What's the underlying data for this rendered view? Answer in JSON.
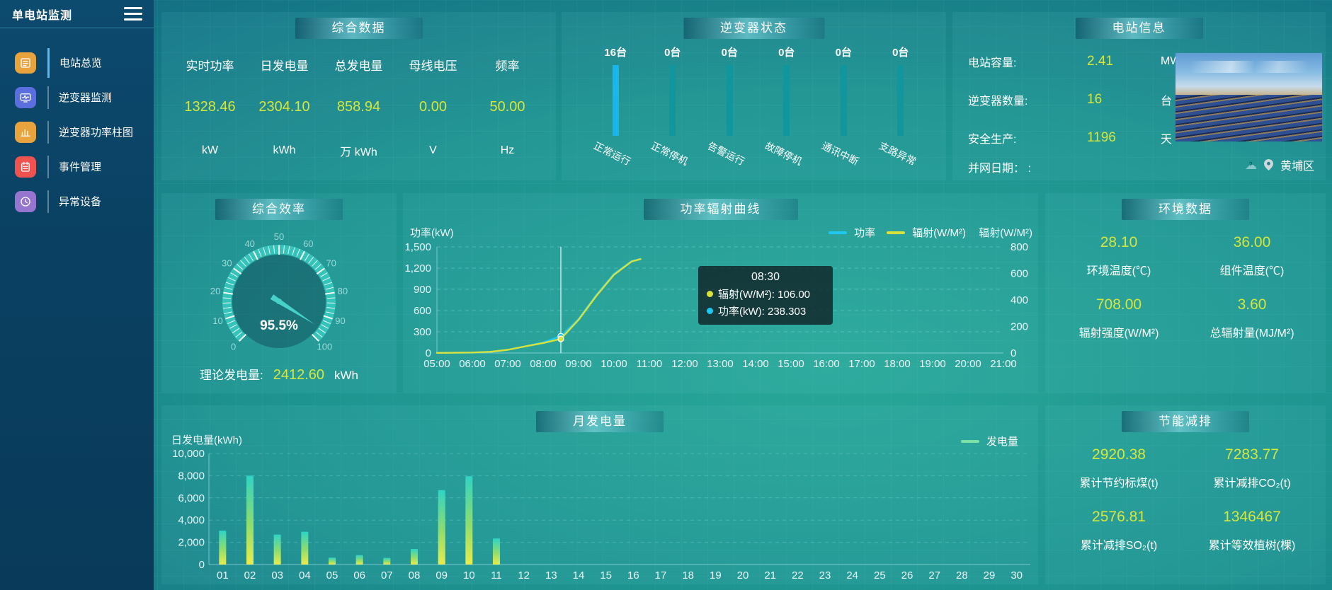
{
  "app": {
    "title": "单电站监测",
    "icons": {
      "menu": "hamburger-icon",
      "collapse": "collapse-left-arrow-icon",
      "weather": "cloud-icon",
      "location": "location-pin-icon"
    }
  },
  "sidebar": {
    "items": [
      {
        "label": "电站总览",
        "active": true,
        "icon": "overview-doc",
        "color": "#e8a33d"
      },
      {
        "label": "逆变器监测",
        "active": false,
        "icon": "inverter-monitor",
        "color": "#5b6ede"
      },
      {
        "label": "逆变器功率柱图",
        "active": false,
        "icon": "power-bars",
        "color": "#e8a33d"
      },
      {
        "label": "事件管理",
        "active": false,
        "icon": "event-note",
        "color": "#ef5350"
      },
      {
        "label": "异常设备",
        "active": false,
        "icon": "abnormal-device",
        "color": "#9575cd"
      }
    ]
  },
  "summary": {
    "title": "综合数据",
    "metrics": [
      {
        "label": "实时功率",
        "value": "1328.46",
        "unit": "kW"
      },
      {
        "label": "日发电量",
        "value": "2304.10",
        "unit": "kWh"
      },
      {
        "label": "总发电量",
        "value": "858.94",
        "unit": "万 kWh"
      },
      {
        "label": "母线电压",
        "value": "0.00",
        "unit": "V"
      },
      {
        "label": "频率",
        "value": "50.00",
        "unit": "Hz"
      }
    ]
  },
  "inverter_status": {
    "title": "逆变器状态",
    "bars": [
      {
        "count": "16台",
        "label": "正常运行",
        "highlight": true
      },
      {
        "count": "0台",
        "label": "正常停机",
        "highlight": false
      },
      {
        "count": "0台",
        "label": "告警运行",
        "highlight": false
      },
      {
        "count": "0台",
        "label": "故障停机",
        "highlight": false
      },
      {
        "count": "0台",
        "label": "通讯中断",
        "highlight": false
      },
      {
        "count": "0台",
        "label": "支路异常",
        "highlight": false
      }
    ],
    "highlight_color": "#19b5ef",
    "normal_color": "#12969e"
  },
  "station_info": {
    "title": "电站信息",
    "rows": [
      {
        "label": "电站容量:",
        "value": "2.41",
        "unit": "MW"
      },
      {
        "label": "逆变器数量:",
        "value": "16",
        "unit": "台"
      },
      {
        "label": "安全生产:",
        "value": "1196",
        "unit": "天"
      },
      {
        "label": "并网日期： :",
        "value": "",
        "unit": ""
      }
    ],
    "location": "黄埔区"
  },
  "efficiency": {
    "title": "综合效率",
    "theory": {
      "label": "理论发电量:",
      "value": "2412.60",
      "unit": "kWh"
    }
  },
  "environment": {
    "title": "环境数据",
    "metrics": [
      {
        "value": "28.10",
        "label": "环境温度(℃)"
      },
      {
        "value": "36.00",
        "label": "组件温度(℃)"
      },
      {
        "value": "708.00",
        "label": "辐射强度(W/M²)"
      },
      {
        "value": "3.60",
        "label": "总辐射量(MJ/M²)"
      }
    ]
  },
  "saving": {
    "title": "节能减排",
    "metrics": [
      {
        "value": "2920.38",
        "label": "累计节约标煤(t)"
      },
      {
        "value": "7283.77",
        "label": "累计减排CO₂(t)"
      },
      {
        "value": "2576.81",
        "label": "累计减排SO₂(t)"
      },
      {
        "value": "1346467",
        "label": "累计等效植树(棵)"
      }
    ]
  },
  "chart_data": [
    {
      "id": "power_curve",
      "type": "line",
      "title": "功率辐射曲线",
      "ylabel_left": "功率(kW)",
      "ylabel_right": "辐射(W/M²)",
      "ylim_left": [
        0,
        1500
      ],
      "ylim_right": [
        0,
        800
      ],
      "y_left_ticks": [
        0,
        300,
        600,
        900,
        1200,
        1500
      ],
      "y_left_tick_labels": [
        "0",
        "300",
        "600",
        "900",
        "1,200",
        "1,500"
      ],
      "y_right_ticks": [
        0,
        200,
        400,
        600,
        800
      ],
      "x_ticks": [
        "05:00",
        "06:00",
        "07:00",
        "08:00",
        "09:00",
        "10:00",
        "11:00",
        "12:00",
        "13:00",
        "14:00",
        "15:00",
        "16:00",
        "17:00",
        "18:00",
        "19:00",
        "20:00",
        "21:00"
      ],
      "x_range_hours": [
        5,
        21
      ],
      "legend": [
        {
          "name": "功率",
          "color": "#1ec8f0"
        },
        {
          "name": "辐射(W/M²)",
          "color": "#d9e23c"
        }
      ],
      "series": [
        {
          "name": "功率",
          "axis": "left",
          "color": "#1ec8f0",
          "points": [
            [
              5,
              2
            ],
            [
              5.5,
              3
            ],
            [
              6,
              6
            ],
            [
              6.5,
              15
            ],
            [
              7,
              45
            ],
            [
              7.5,
              95
            ],
            [
              8,
              150
            ],
            [
              8.5,
              238.3
            ],
            [
              9,
              480
            ],
            [
              9.5,
              820
            ],
            [
              10,
              1120
            ],
            [
              10.5,
              1300
            ],
            [
              10.75,
              1330
            ]
          ]
        },
        {
          "name": "辐射",
          "axis": "right",
          "color": "#d9e23c",
          "points": [
            [
              5,
              1
            ],
            [
              5.5,
              2
            ],
            [
              6,
              4
            ],
            [
              6.5,
              9
            ],
            [
              7,
              24
            ],
            [
              7.5,
              50
            ],
            [
              8,
              75
            ],
            [
              8.5,
              106
            ],
            [
              9,
              250
            ],
            [
              9.5,
              430
            ],
            [
              10,
              590
            ],
            [
              10.5,
              690
            ],
            [
              10.75,
              708
            ]
          ]
        }
      ],
      "tooltip": {
        "time": "08:30",
        "x_hour": 8.5,
        "items": [
          {
            "name": "辐射(W/M²)",
            "value": "106.00",
            "color": "#d9e23c"
          },
          {
            "name": "功率(kW)",
            "value": "238.303",
            "color": "#1ec8f0"
          }
        ]
      }
    },
    {
      "id": "monthly_energy",
      "type": "bar",
      "title": "月发电量",
      "ylabel": "日发电量(kWh)",
      "ylim": [
        0,
        10000
      ],
      "y_ticks": [
        0,
        2000,
        4000,
        6000,
        8000,
        10000
      ],
      "y_tick_labels": [
        "0",
        "2,000",
        "4,000",
        "6,000",
        "8,000",
        "10,000"
      ],
      "legend": [
        {
          "name": "发电量",
          "color": "#7de0a4"
        }
      ],
      "categories": [
        "01",
        "02",
        "03",
        "04",
        "05",
        "06",
        "07",
        "08",
        "09",
        "10",
        "11",
        "12",
        "13",
        "14",
        "15",
        "16",
        "17",
        "18",
        "19",
        "20",
        "21",
        "22",
        "23",
        "24",
        "25",
        "26",
        "27",
        "28",
        "29",
        "30"
      ],
      "values": [
        3050,
        8000,
        2700,
        2950,
        620,
        850,
        600,
        1400,
        6700,
        7950,
        2350,
        0,
        0,
        0,
        0,
        0,
        0,
        0,
        0,
        0,
        0,
        0,
        0,
        0,
        0,
        0,
        0,
        0,
        0,
        0
      ],
      "bar_gradient": [
        "#2fd3c5",
        "#8fdd6e",
        "#e9ec4d"
      ]
    },
    {
      "id": "efficiency_gauge",
      "type": "gauge",
      "min": 0,
      "max": 100,
      "value": 95.5,
      "value_display": "95.5%",
      "tick_labels": [
        0,
        10,
        20,
        30,
        40,
        50,
        60,
        70,
        80,
        90,
        100
      ],
      "ring_color": "#35c3ba",
      "needle_color": "#46d2c8"
    }
  ]
}
